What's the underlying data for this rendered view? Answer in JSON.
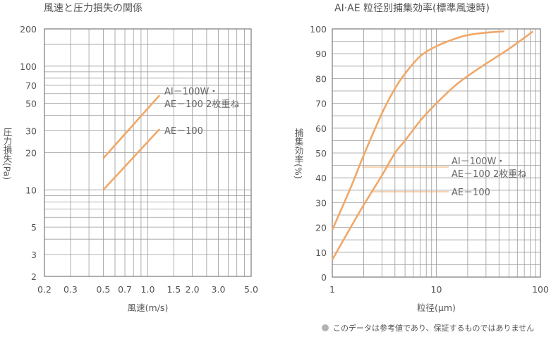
{
  "note": "このデータは参考値であり、保証するものではありません",
  "chart_data": [
    {
      "type": "line",
      "title": "風速と圧力損失の関係",
      "xlabel": "風速(m/s)",
      "ylabel": "圧力損失(Pa)",
      "xscale": "log",
      "yscale": "log",
      "xlim": [
        0.2,
        5.0
      ],
      "ylim": [
        2,
        200
      ],
      "xticks": [
        0.2,
        0.3,
        0.5,
        0.7,
        1.0,
        1.5,
        2.0,
        3.0,
        5.0
      ],
      "xtick_labels": [
        "0.2",
        "0.3",
        "0.5",
        "0.7",
        "1.0",
        "1.5",
        "2.0",
        "3.0",
        "5.0"
      ],
      "yticks": [
        2,
        3,
        5,
        10,
        20,
        30,
        50,
        70,
        100,
        200
      ],
      "ytick_labels": [
        "2",
        "3",
        "5",
        "10",
        "20",
        "30",
        "50",
        "70",
        "100",
        "200"
      ],
      "grid": true,
      "color": "#f0a868",
      "series": [
        {
          "name": "AI－100W・\nAE－100 2枚重ね",
          "x": [
            0.5,
            1.2
          ],
          "y": [
            18,
            58
          ]
        },
        {
          "name": "AE－100",
          "x": [
            0.5,
            1.2
          ],
          "y": [
            10,
            31
          ]
        }
      ]
    },
    {
      "type": "line",
      "title": "AI·AE 粒径別捕集効率(標準風速時)",
      "xlabel": "粒径(μm)",
      "ylabel": "捕集効率(%)",
      "xscale": "log",
      "yscale": "linear",
      "xlim": [
        1,
        100
      ],
      "ylim": [
        0,
        100
      ],
      "xticks": [
        1,
        10,
        100
      ],
      "xtick_labels": [
        "1",
        "10",
        "100"
      ],
      "yticks": [
        0,
        10,
        20,
        30,
        40,
        50,
        60,
        70,
        80,
        90,
        100
      ],
      "ytick_labels": [
        "0",
        "10",
        "20",
        "30",
        "40",
        "50",
        "60",
        "70",
        "80",
        "90",
        "100"
      ],
      "grid": true,
      "color": "#f0a868",
      "series": [
        {
          "name": "AI－100W・\nAE－100 2枚重ね",
          "x": [
            1,
            1.5,
            2,
            3,
            4,
            5,
            7,
            10,
            15,
            20,
            30,
            45
          ],
          "y": [
            19,
            36,
            49,
            66,
            76,
            82,
            89,
            93,
            96,
            97.5,
            98.5,
            99
          ]
        },
        {
          "name": "AE－100",
          "x": [
            1,
            1.5,
            2,
            3,
            4,
            5,
            7,
            10,
            15,
            20,
            30,
            50,
            85
          ],
          "y": [
            7,
            20,
            29,
            41,
            50,
            55,
            63,
            70,
            77,
            81,
            86,
            92,
            99
          ]
        }
      ]
    }
  ]
}
